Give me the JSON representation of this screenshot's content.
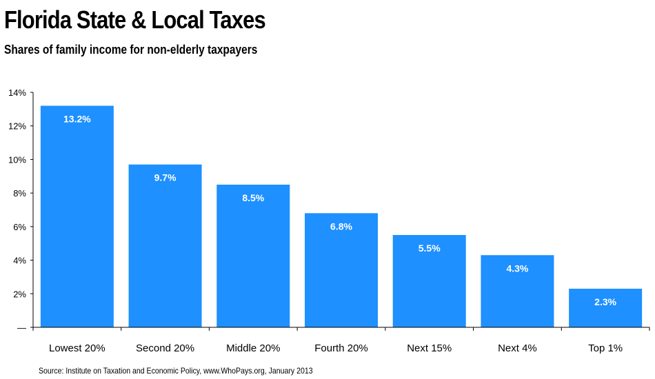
{
  "title": "Florida State & Local Taxes",
  "subtitle": "Shares of family income for non-elderly taxpayers",
  "source": "Source: Institute on Taxation and Economic Policy, www.WhoPays.org, January 2013",
  "colors": {
    "bar": "#1e90ff",
    "axis": "#000000",
    "background": "#ffffff"
  },
  "chart_data": {
    "type": "bar",
    "title": "Florida State & Local Taxes",
    "subtitle": "Shares of family income for non-elderly taxpayers",
    "categories": [
      "Lowest 20%",
      "Second 20%",
      "Middle 20%",
      "Fourth 20%",
      "Next 15%",
      "Next 4%",
      "Top 1%"
    ],
    "values": [
      13.2,
      9.7,
      8.5,
      6.8,
      5.5,
      4.3,
      2.3
    ],
    "data_labels": [
      "13.2%",
      "9.7%",
      "8.5%",
      "6.8%",
      "5.5%",
      "4.3%",
      "2.3%"
    ],
    "y_ticks": [
      0,
      2,
      4,
      6,
      8,
      10,
      12,
      14
    ],
    "y_tick_labels": [
      "—",
      "2%",
      "4%",
      "6%",
      "8%",
      "10%",
      "12%",
      "14%"
    ],
    "xlabel": "",
    "ylabel": "",
    "ylim": [
      0,
      14
    ],
    "grid": false,
    "legend": "none"
  }
}
